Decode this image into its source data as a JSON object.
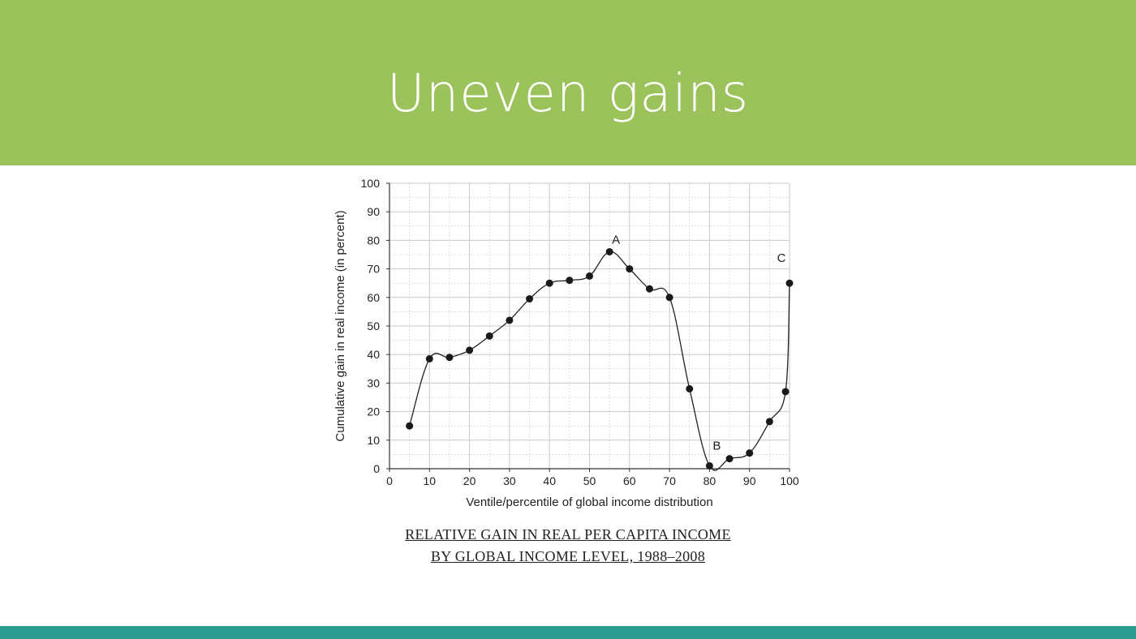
{
  "slide": {
    "title": "Uneven gains",
    "caption_line_1": "RELATIVE GAIN IN REAL PER CAPITA INCOME",
    "caption_line_2": "BY GLOBAL INCOME LEVEL, 1988–2008"
  },
  "colors": {
    "header": "#9bc25b",
    "footer": "#2a9c90",
    "line": "#222222",
    "grid": "#c9c9c9"
  },
  "chart_data": {
    "type": "line",
    "title": "",
    "xlabel": "Ventile/percentile of global income distribution",
    "ylabel": "Cumulative gain in real income (in percent)",
    "xlim": [
      0,
      100
    ],
    "ylim": [
      0,
      100
    ],
    "x_ticks": [
      "0",
      "10",
      "20",
      "30",
      "40",
      "50",
      "60",
      "70",
      "80",
      "90",
      "100"
    ],
    "y_ticks": [
      "0",
      "10",
      "20",
      "30",
      "40",
      "50",
      "60",
      "70",
      "80",
      "90",
      "100"
    ],
    "grid": true,
    "series": [
      {
        "x": [
          5,
          10,
          15,
          20,
          25,
          30,
          35,
          40,
          45,
          50,
          55,
          60,
          65,
          70,
          75,
          80,
          85,
          90,
          95,
          99,
          100
        ],
        "y": [
          15,
          38.5,
          39,
          41.5,
          46.5,
          52,
          59.5,
          65,
          66,
          67.5,
          76,
          70,
          63,
          60,
          28,
          1,
          3.5,
          5.5,
          16.5,
          27,
          65
        ]
      }
    ],
    "annotations": [
      {
        "label": "A",
        "x": 55,
        "y": 76
      },
      {
        "label": "B",
        "x": 80,
        "y": 1
      },
      {
        "label": "C",
        "x": 100,
        "y": 65
      }
    ]
  }
}
